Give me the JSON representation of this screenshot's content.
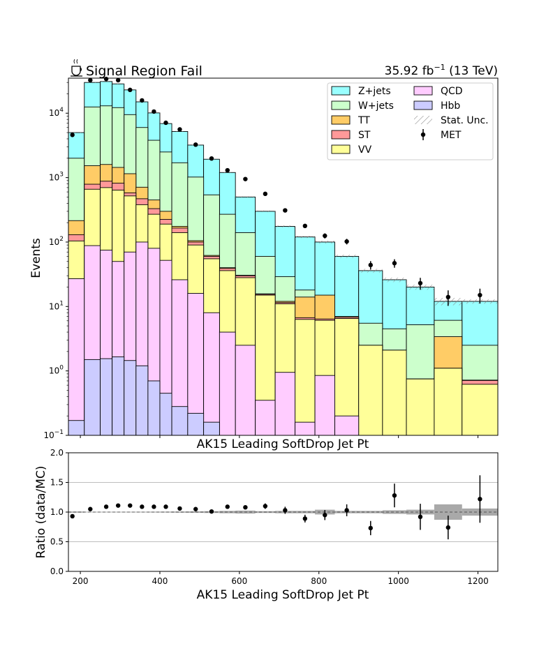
{
  "header": {
    "icon": "coffee-icon",
    "title": "Signal Region Fail",
    "lumi": "35.92 fb",
    "lumi_exp": "−1",
    "energy": " (13 TeV)"
  },
  "chart_data": {
    "type": "bar",
    "style": "stacked-step-histogram",
    "main": {
      "xlabel_top": "AK15 Leading SoftDrop Jet Pt",
      "ylabel": "Events",
      "yscale": "log",
      "ylim": [
        0.1,
        35000
      ],
      "xlim": [
        170,
        1250
      ],
      "bin_edges": [
        170,
        210,
        250,
        280,
        310,
        340,
        370,
        400,
        430,
        470,
        510,
        550,
        590,
        640,
        690,
        740,
        790,
        840,
        900,
        960,
        1020,
        1090,
        1160,
        1250
      ],
      "stack_order": [
        "Hbb",
        "QCD",
        "VV",
        "ST",
        "TT",
        "W+jets",
        "Z+jets"
      ],
      "cumulative": [
        {
          "name": "Hbb",
          "values": [
            0.17,
            1.5,
            1.55,
            1.65,
            1.45,
            1.2,
            0.7,
            0.45,
            0.28,
            0.22,
            0.16,
            null,
            null,
            null,
            null,
            null,
            null,
            null,
            null,
            null,
            null,
            null,
            null
          ]
        },
        {
          "name": "QCD",
          "values": [
            27,
            88,
            75,
            50,
            70,
            100,
            80,
            52,
            26,
            16,
            8,
            4,
            2.5,
            0.35,
            0.95,
            0.16,
            0.85,
            0.2,
            null,
            null,
            null,
            null,
            null
          ]
        },
        {
          "name": "VV",
          "values": [
            104,
            660,
            700,
            640,
            520,
            380,
            270,
            190,
            140,
            90,
            55,
            36,
            28,
            15,
            11,
            6.3,
            6.1,
            6.5,
            2.5,
            2.1,
            0.75,
            1.1,
            0.62
          ]
        },
        {
          "name": "ST",
          "values": [
            130,
            790,
            880,
            820,
            580,
            470,
            330,
            225,
            165,
            100,
            60,
            39,
            30,
            15.5,
            11.5,
            6.7,
            6.4,
            6.8,
            2.5,
            2.1,
            0.75,
            1.1,
            0.71
          ]
        },
        {
          "name": "TT",
          "values": [
            215,
            1530,
            1600,
            1440,
            1150,
            710,
            450,
            300,
            175,
            105,
            62,
            40,
            30.5,
            15.7,
            12,
            14,
            15,
            7,
            2.5,
            2.1,
            0.75,
            3.4,
            0.72
          ]
        },
        {
          "name": "W+jets",
          "values": [
            2000,
            12500,
            13000,
            12200,
            9500,
            6000,
            3800,
            2500,
            1700,
            1020,
            540,
            270,
            140,
            60,
            29,
            18,
            10.5,
            5.8,
            5.5,
            4.5,
            5.2,
            6.1,
            2.5
          ]
        },
        {
          "name": "Z+jets",
          "values": [
            5000,
            30000,
            31000,
            28500,
            23000,
            15000,
            10100,
            6900,
            5200,
            3200,
            1930,
            1200,
            500,
            300,
            175,
            120,
            100,
            60,
            36,
            26,
            20,
            12,
            12
          ]
        }
      ],
      "data": {
        "name": "MET",
        "x": [
          180,
          225,
          265,
          295,
          325,
          355,
          385,
          415,
          450,
          490,
          530,
          570,
          615,
          665,
          715,
          765,
          815,
          870,
          930,
          990,
          1055,
          1125,
          1205
        ],
        "y": [
          4600,
          32500,
          34000,
          32500,
          23000,
          15800,
          10600,
          7100,
          5600,
          3250,
          1980,
          1300,
          950,
          560,
          310,
          178,
          125,
          102,
          44,
          47,
          23,
          14,
          15
        ],
        "yerr_frac": [
          0.015,
          0.006,
          0.006,
          0.006,
          0.007,
          0.008,
          0.01,
          0.012,
          0.013,
          0.018,
          0.022,
          0.028,
          0.032,
          0.042,
          0.057,
          0.075,
          0.09,
          0.1,
          0.15,
          0.15,
          0.21,
          0.27,
          0.26
        ]
      },
      "legend": {
        "placement": "top-right",
        "columns": [
          [
            {
              "label": "Z+jets",
              "color": "#99ffff",
              "kind": "box"
            },
            {
              "label": "W+jets",
              "color": "#ccffcc",
              "kind": "box"
            },
            {
              "label": "TT",
              "color": "#ffcc66",
              "kind": "box"
            },
            {
              "label": "ST",
              "color": "#ff9999",
              "kind": "box"
            },
            {
              "label": "VV",
              "color": "#ffff99",
              "kind": "box"
            }
          ],
          [
            {
              "label": "QCD",
              "color": "#ffccff",
              "kind": "box"
            },
            {
              "label": "Hbb",
              "color": "#ccccff",
              "kind": "box"
            },
            {
              "label": "Stat. Unc.",
              "color": "#888888",
              "kind": "hatch"
            },
            {
              "label": "MET",
              "color": "#000000",
              "kind": "marker"
            }
          ]
        ]
      },
      "colors": {
        "Hbb": "#ccccff",
        "QCD": "#ffccff",
        "VV": "#ffff99",
        "ST": "#ff9999",
        "TT": "#ffcc66",
        "W+jets": "#ccffcc",
        "Z+jets": "#99ffff"
      },
      "stat_unc_frac": [
        0.01,
        0.004,
        0.004,
        0.004,
        0.005,
        0.006,
        0.007,
        0.008,
        0.01,
        0.012,
        0.015,
        0.02,
        0.025,
        0.03,
        0.035,
        0.04,
        0.05,
        0.06,
        0.07,
        0.08,
        0.09,
        0.13,
        0.08
      ],
      "yticks": [
        {
          "value": 0.1,
          "base": "10",
          "exp": "−1"
        },
        {
          "value": 1,
          "base": "10",
          "exp": "0"
        },
        {
          "value": 10,
          "base": "10",
          "exp": "1"
        },
        {
          "value": 100,
          "base": "10",
          "exp": "2"
        },
        {
          "value": 1000,
          "base": "10",
          "exp": "3"
        },
        {
          "value": 10000,
          "base": "10",
          "exp": "4"
        }
      ]
    },
    "ratio": {
      "xlabel": "AK15 Leading SoftDrop Jet Pt",
      "ylabel": "Ratio (data/MC)",
      "ylim": [
        0.0,
        2.0
      ],
      "yticks": [
        "0.0",
        "0.5",
        "1.0",
        "1.5",
        "2.0"
      ],
      "grid_y": [
        0.5,
        1.0,
        1.5
      ],
      "xticks": [
        "200",
        "400",
        "600",
        "800",
        "1000",
        "1200"
      ],
      "x": [
        180,
        225,
        265,
        295,
        325,
        355,
        385,
        415,
        450,
        490,
        530,
        570,
        615,
        665,
        715,
        765,
        815,
        870,
        930,
        990,
        1055,
        1125,
        1205
      ],
      "y": [
        0.93,
        1.05,
        1.09,
        1.11,
        1.11,
        1.09,
        1.09,
        1.09,
        1.06,
        1.05,
        1.01,
        1.09,
        1.08,
        1.1,
        1.03,
        0.89,
        0.95,
        1.03,
        0.73,
        1.28,
        0.92,
        0.74,
        1.22
      ],
      "yerr": [
        0.015,
        0.006,
        0.006,
        0.006,
        0.007,
        0.008,
        0.01,
        0.012,
        0.013,
        0.018,
        0.022,
        0.03,
        0.034,
        0.046,
        0.06,
        0.065,
        0.085,
        0.1,
        0.12,
        0.2,
        0.22,
        0.2,
        0.4
      ],
      "unc_band": [
        0.01,
        0.004,
        0.004,
        0.004,
        0.005,
        0.006,
        0.007,
        0.008,
        0.01,
        0.012,
        0.015,
        0.02,
        0.025,
        0.015,
        0.02,
        0.02,
        0.04,
        0.02,
        0.02,
        0.03,
        0.04,
        0.13,
        0.06
      ]
    }
  }
}
